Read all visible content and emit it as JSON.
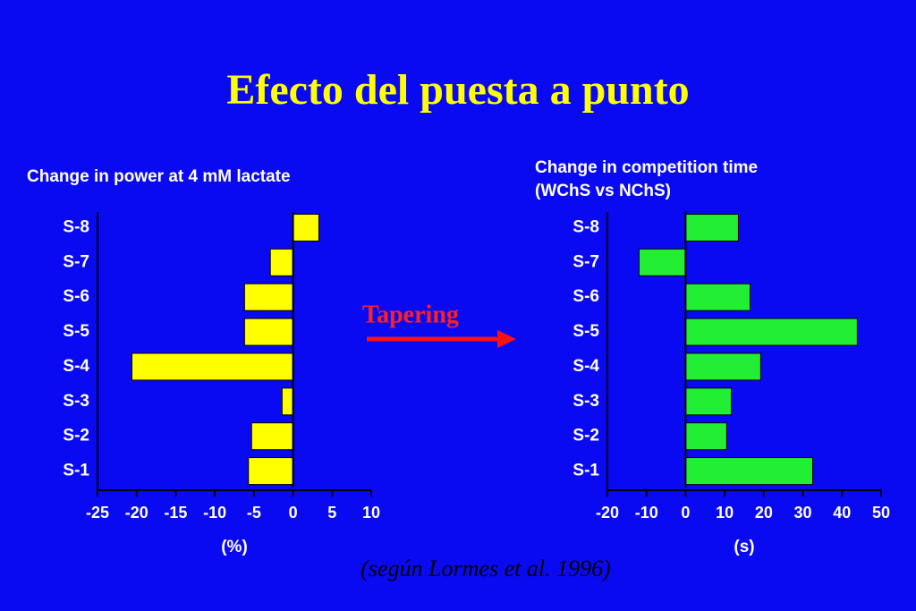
{
  "title": "Efecto del puesta a punto",
  "annotation": "Tapering",
  "source": "(según Lormes et al. 1996)",
  "chart_data": [
    {
      "type": "bar",
      "orientation": "horizontal",
      "title": [
        "Change in power at 4 mM  lactate"
      ],
      "xlabel": "(%)",
      "categories": [
        "S-8",
        "S-7",
        "S-6",
        "S-5",
        "S-4",
        "S-3",
        "S-2",
        "S-1"
      ],
      "values": [
        3.3,
        -2.9,
        -6.2,
        -6.2,
        -20.6,
        -1.4,
        -5.3,
        -5.7
      ],
      "color": "#ffff00",
      "xlim": [
        -25,
        10
      ],
      "xticks": [
        -25,
        -20,
        -15,
        -10,
        -5,
        0,
        5,
        10
      ]
    },
    {
      "type": "bar",
      "orientation": "horizontal",
      "title": [
        "Change in competition time",
        "(WChS vs NChS)"
      ],
      "xlabel": "(s)",
      "categories": [
        "S-8",
        "S-7",
        "S-6",
        "S-5",
        "S-4",
        "S-3",
        "S-2",
        "S-1"
      ],
      "values": [
        13.5,
        -11.9,
        16.5,
        43.9,
        19.2,
        11.7,
        10.5,
        32.5
      ],
      "color": "#22ee33",
      "xlim": [
        -20,
        50
      ],
      "xticks": [
        -20,
        -10,
        0,
        10,
        20,
        30,
        40,
        50
      ]
    }
  ]
}
